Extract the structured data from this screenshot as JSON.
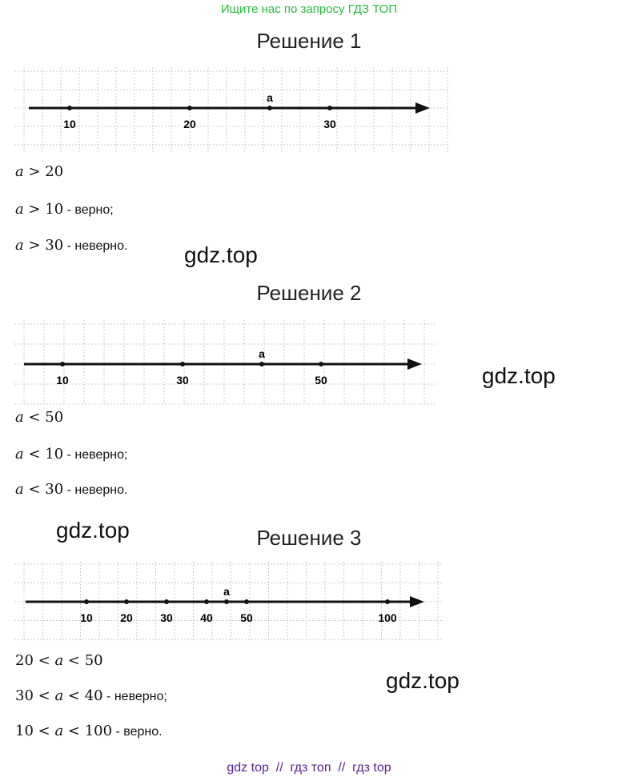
{
  "header": "Ищите нас по запросу ГДЗ ТОП",
  "watermark": "gdz.top",
  "footer": "gdz top  //  гдз топ  //  гдз top",
  "solutions": [
    {
      "title": "Решение 1",
      "point_label": "a",
      "ticks": [
        "10",
        "20",
        "30"
      ],
      "lines": [
        {
          "math": "a > 20",
          "note": ""
        },
        {
          "math": "a > 10",
          "note": " - верно;"
        },
        {
          "math": "a > 30",
          "note": " - неверно."
        }
      ]
    },
    {
      "title": "Решение 2",
      "point_label": "a",
      "ticks": [
        "10",
        "30",
        "50"
      ],
      "lines": [
        {
          "math": "a < 50",
          "note": ""
        },
        {
          "math": "a < 10",
          "note": " - неверно;"
        },
        {
          "math": "a < 30",
          "note": " - неверно."
        }
      ]
    },
    {
      "title": "Решение 3",
      "point_label": "a",
      "ticks": [
        "10",
        "20",
        "30",
        "40",
        "50",
        "100"
      ],
      "lines": [
        {
          "math": "20 < a < 50",
          "note": ""
        },
        {
          "math": "30 < a < 40",
          "note": " - неверно;"
        },
        {
          "math": "10 < a < 100",
          "note": " - верно."
        }
      ]
    }
  ]
}
